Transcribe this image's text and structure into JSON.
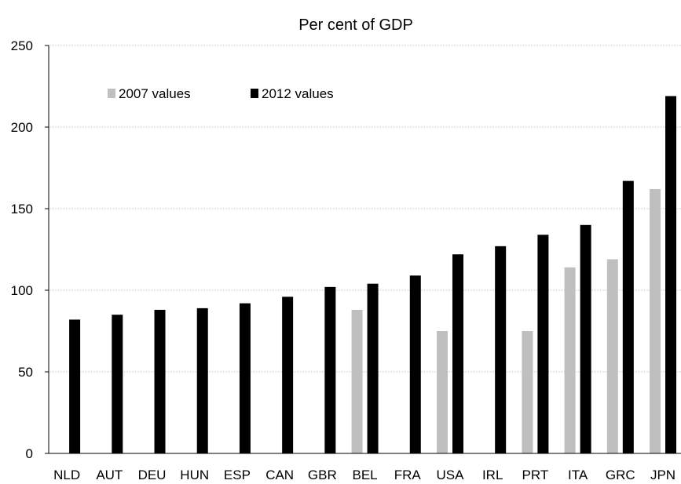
{
  "chart_data": {
    "type": "bar",
    "title": "Per cent of GDP",
    "xlabel": "",
    "ylabel": "",
    "ylim": [
      0,
      250
    ],
    "yticks": [
      0,
      50,
      100,
      150,
      200,
      250
    ],
    "grid": true,
    "legend_position": "top-left",
    "categories": [
      "NLD",
      "AUT",
      "DEU",
      "HUN",
      "ESP",
      "CAN",
      "GBR",
      "BEL",
      "FRA",
      "USA",
      "IRL",
      "PRT",
      "ITA",
      "GRC",
      "JPN"
    ],
    "series": [
      {
        "name": "2007 values",
        "color": "#bfbfbf",
        "values": [
          null,
          null,
          null,
          null,
          null,
          null,
          null,
          88,
          null,
          75,
          null,
          75,
          114,
          119,
          162
        ]
      },
      {
        "name": "2012 values",
        "color": "#000000",
        "values": [
          82,
          85,
          88,
          89,
          92,
          96,
          102,
          104,
          109,
          122,
          127,
          134,
          140,
          167,
          219
        ]
      }
    ]
  }
}
